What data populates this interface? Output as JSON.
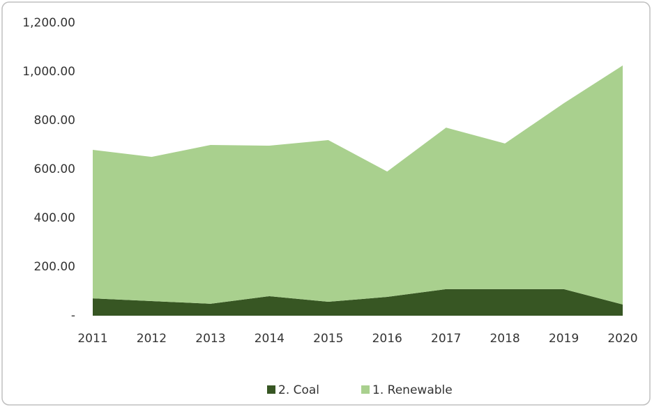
{
  "chart_data": {
    "type": "stacked-area",
    "categories": [
      "2011",
      "2012",
      "2013",
      "2014",
      "2015",
      "2016",
      "2017",
      "2018",
      "2019",
      "2020"
    ],
    "series": [
      {
        "name": "2. Coal",
        "color": "#375623",
        "values": [
          71,
          60,
          49,
          80,
          57,
          77,
          109,
          109,
          109,
          46
        ]
      },
      {
        "name": "1. Renewable",
        "color": "#a9d08e",
        "values": [
          609,
          591,
          651,
          617,
          663,
          514,
          662,
          597,
          762,
          980
        ]
      }
    ],
    "ylim": [
      0,
      1200
    ],
    "yticks": [
      {
        "value": 0,
        "label": "-"
      },
      {
        "value": 200,
        "label": "200.00"
      },
      {
        "value": 400,
        "label": "400.00"
      },
      {
        "value": 600,
        "label": "600.00"
      },
      {
        "value": 800,
        "label": "800.00"
      },
      {
        "value": 1000,
        "label": "1,000.00"
      },
      {
        "value": 1200,
        "label": "1,200.00"
      }
    ],
    "grid": false
  }
}
